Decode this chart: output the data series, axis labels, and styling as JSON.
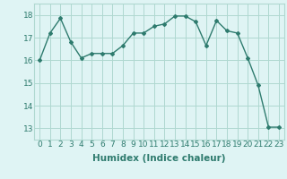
{
  "x": [
    0,
    1,
    2,
    3,
    4,
    5,
    6,
    7,
    8,
    9,
    10,
    11,
    12,
    13,
    14,
    15,
    16,
    17,
    18,
    19,
    20,
    21,
    22,
    23
  ],
  "y": [
    16.0,
    17.2,
    17.85,
    16.8,
    16.1,
    16.3,
    16.3,
    16.3,
    16.65,
    17.2,
    17.2,
    17.5,
    17.6,
    17.95,
    17.95,
    17.7,
    16.65,
    17.75,
    17.3,
    17.2,
    16.1,
    14.9,
    13.05,
    13.05
  ],
  "line_color": "#2e7b6e",
  "marker": "D",
  "marker_size": 2,
  "bg_color": "#dff4f4",
  "grid_color": "#afd8d0",
  "xlabel": "Humidex (Indice chaleur)",
  "xlabel_fontsize": 7.5,
  "ylim": [
    12.5,
    18.5
  ],
  "xlim": [
    -0.5,
    23.5
  ],
  "yticks": [
    13,
    14,
    15,
    16,
    17,
    18
  ],
  "xticks": [
    0,
    1,
    2,
    3,
    4,
    5,
    6,
    7,
    8,
    9,
    10,
    11,
    12,
    13,
    14,
    15,
    16,
    17,
    18,
    19,
    20,
    21,
    22,
    23
  ],
  "tick_fontsize": 6.5,
  "line_width": 1.0
}
